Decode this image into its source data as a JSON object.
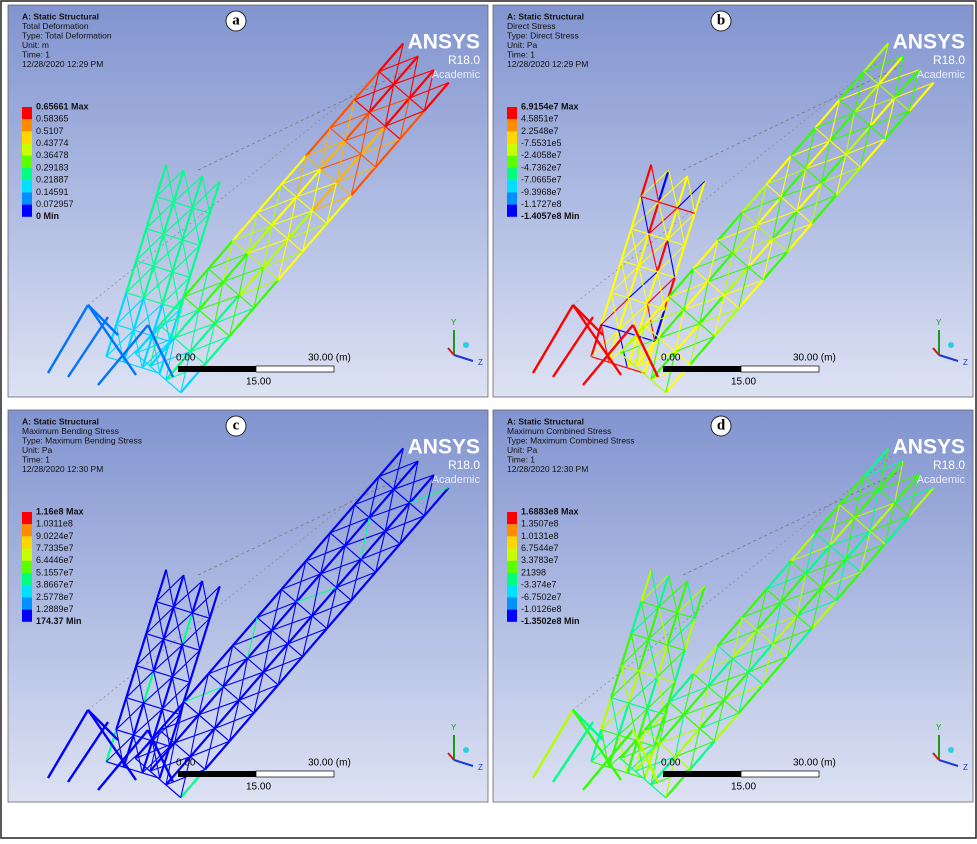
{
  "panels": [
    {
      "letter": "a",
      "header": [
        "A: Static Structural",
        "Total Deformation",
        "Type: Total Deformation",
        "Unit: m",
        "Time: 1",
        "12/28/2020 12:29 PM"
      ],
      "legend": [
        "0.65661 Max",
        "0.58365",
        "0.5107",
        "0.43774",
        "0.36478",
        "0.29183",
        "0.21887",
        "0.14591",
        "0.072957",
        "0 Min"
      ],
      "logo": {
        "brand": "ANSYS",
        "version": "R18.0",
        "edition": "Academic"
      },
      "scale": {
        "left": "0.00",
        "right": "30.00 (m)",
        "middle": "15.00"
      },
      "axes": {
        "y": "Y",
        "z": "Z"
      }
    },
    {
      "letter": "b",
      "header": [
        "A: Static Structural",
        "Direct Stress",
        "Type: Direct Stress",
        "Unit: Pa",
        "Time: 1",
        "12/28/2020 12:29 PM"
      ],
      "legend": [
        "6.9154e7 Max",
        "4.5851e7",
        "2.2548e7",
        "-7.5531e5",
        "-2.4058e7",
        "-4.7362e7",
        "-7.0665e7",
        "-9.3968e7",
        "-1.1727e8",
        "-1.4057e8 Min"
      ],
      "logo": {
        "brand": "ANSYS",
        "version": "R18.0",
        "edition": "Academic"
      },
      "scale": {
        "left": "0.00",
        "right": "30.00 (m)",
        "middle": "15.00"
      },
      "axes": {
        "y": "Y",
        "z": "Z"
      }
    },
    {
      "letter": "c",
      "header": [
        "A: Static Structural",
        "Maximum Bending Stress",
        "Type: Maximum Bending Stress",
        "Unit: Pa",
        "Time: 1",
        "12/28/2020 12:30 PM"
      ],
      "legend": [
        "1.16e8 Max",
        "1.0311e8",
        "9.0224e7",
        "7.7335e7",
        "6.4446e7",
        "5.1557e7",
        "3.8667e7",
        "2.5778e7",
        "1.2889e7",
        "174.37 Min"
      ],
      "logo": {
        "brand": "ANSYS",
        "version": "R18.0",
        "edition": "Academic"
      },
      "scale": {
        "left": "0.00",
        "right": "30.00 (m)",
        "middle": "15.00"
      },
      "axes": {
        "y": "Y",
        "z": "Z"
      }
    },
    {
      "letter": "d",
      "header": [
        "A: Static Structural",
        "Maximum Combined Stress",
        "Type: Maximum Combined Stress",
        "Unit: Pa",
        "Time: 1",
        "12/28/2020 12:30 PM"
      ],
      "legend": [
        "1.6883e8 Max",
        "1.3507e8",
        "1.0131e8",
        "6.7544e7",
        "3.3783e7",
        "21398",
        "-3.374e7",
        "-6.7502e7",
        "-1.0126e8",
        "-1.3502e8 Min"
      ],
      "logo": {
        "brand": "ANSYS",
        "version": "R18.0",
        "edition": "Academic"
      },
      "scale": {
        "left": "0.00",
        "right": "30.00 (m)",
        "middle": "15.00"
      },
      "axes": {
        "y": "Y",
        "z": "Z"
      }
    }
  ]
}
